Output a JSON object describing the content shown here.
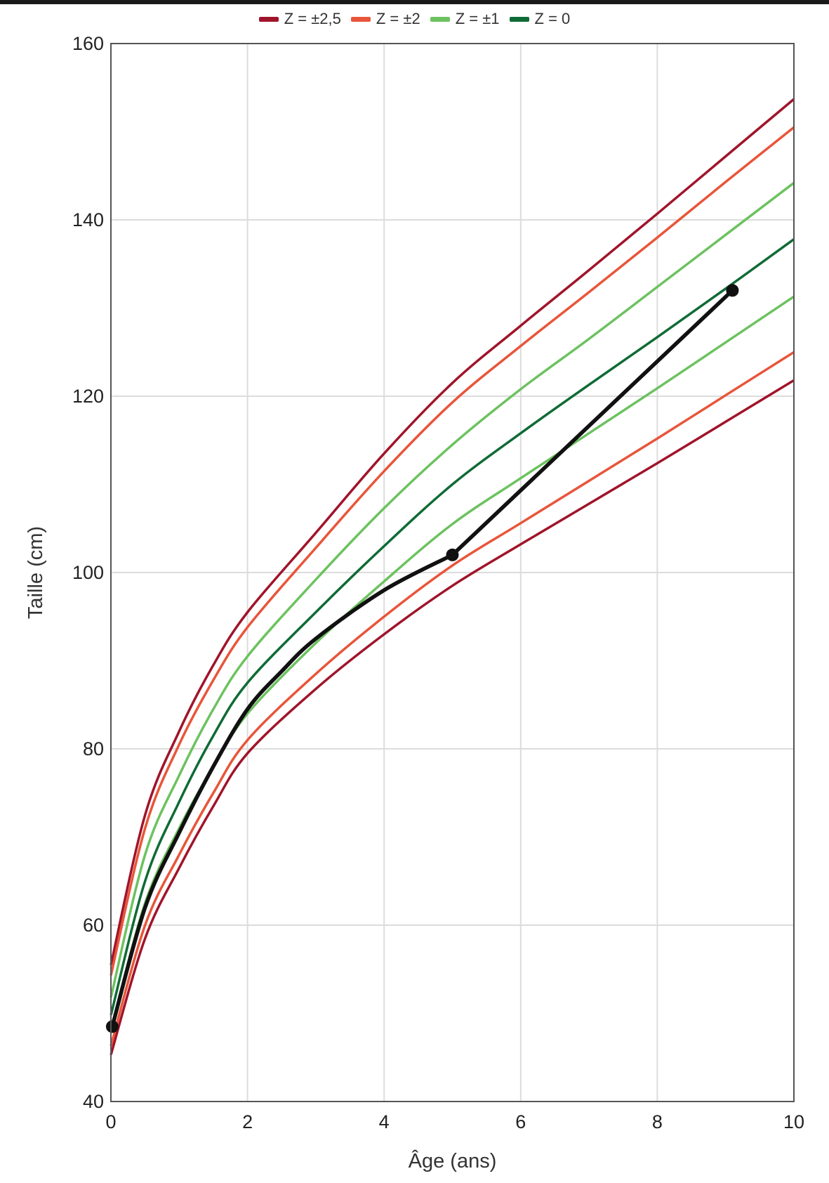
{
  "chart_data": {
    "type": "line",
    "xlabel": "Âge (ans)",
    "ylabel": "Taille (cm)",
    "xlim": [
      0,
      10
    ],
    "ylim": [
      40,
      160
    ],
    "x_ticks": [
      0,
      2,
      4,
      6,
      8,
      10
    ],
    "y_ticks": [
      40,
      60,
      80,
      100,
      120,
      140,
      160
    ],
    "grid": true,
    "legend_position": "top-center",
    "legend": [
      {
        "label": "Z = ±2,5",
        "color": "#a0142a"
      },
      {
        "label": "Z = ±2",
        "color": "#e8553a"
      },
      {
        "label": "Z = ±1",
        "color": "#6cc25f"
      },
      {
        "label": "Z = 0",
        "color": "#0f6b35"
      }
    ],
    "x": [
      0,
      0.5,
      1,
      1.5,
      2,
      3,
      4,
      5,
      6,
      7,
      8,
      9,
      10
    ],
    "series": [
      {
        "z": "+2.5",
        "color": "#a0142a",
        "values": [
          55.5,
          72.5,
          82.0,
          89.5,
          95.5,
          104.5,
          113.5,
          121.5,
          128.0,
          134.3,
          140.7,
          147.2,
          153.7
        ]
      },
      {
        "z": "+2",
        "color": "#e8553a",
        "values": [
          54.3,
          71.0,
          80.5,
          87.8,
          93.8,
          102.8,
          111.5,
          119.3,
          125.7,
          131.8,
          138.0,
          144.3,
          150.5
        ]
      },
      {
        "z": "+1",
        "color": "#6cc25f",
        "values": [
          51.8,
          68.0,
          77.0,
          84.5,
          90.5,
          99.2,
          107.3,
          114.5,
          120.8,
          126.5,
          132.4,
          138.3,
          144.2
        ]
      },
      {
        "z": "0",
        "color": "#0f6b35",
        "values": [
          49.8,
          65.0,
          74.0,
          81.5,
          87.5,
          95.5,
          103.0,
          110.0,
          115.8,
          121.3,
          126.7,
          132.2,
          137.8
        ]
      },
      {
        "z": "-1",
        "color": "#6cc25f",
        "values": [
          48.0,
          62.5,
          71.0,
          78.0,
          84.0,
          92.0,
          99.0,
          105.5,
          110.7,
          115.8,
          120.9,
          126.1,
          131.3
        ]
      },
      {
        "z": "-2",
        "color": "#e8553a",
        "values": [
          46.3,
          60.0,
          68.0,
          75.0,
          81.0,
          88.5,
          95.0,
          100.8,
          105.6,
          110.4,
          115.2,
          120.1,
          125.0
        ]
      },
      {
        "z": "-2.5",
        "color": "#a0142a",
        "values": [
          45.3,
          58.5,
          66.5,
          73.5,
          79.5,
          86.8,
          93.0,
          98.5,
          103.2,
          107.8,
          112.4,
          117.1,
          121.8
        ]
      }
    ],
    "patient": {
      "color": "#111111",
      "points": [
        [
          0.02,
          48.5
        ],
        [
          5.0,
          102.0
        ],
        [
          9.1,
          132.0
        ]
      ],
      "curve": [
        [
          0.02,
          48.5
        ],
        [
          0.5,
          62.0
        ],
        [
          1.0,
          70.5
        ],
        [
          1.5,
          78.0
        ],
        [
          2.0,
          84.5
        ],
        [
          2.5,
          88.8
        ],
        [
          3.0,
          92.5
        ],
        [
          4.0,
          98.0
        ],
        [
          5.0,
          102.0
        ],
        [
          9.1,
          132.0
        ]
      ]
    }
  }
}
